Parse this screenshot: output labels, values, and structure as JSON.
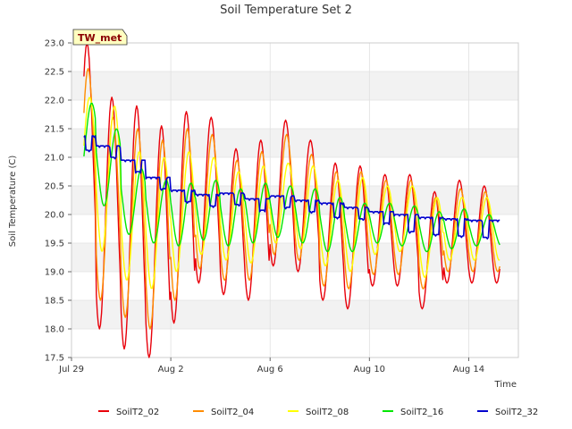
{
  "chart_data": {
    "type": "line",
    "title": "Soil Temperature Set 2",
    "xlabel": "Time",
    "ylabel": "Soil Temperature (C)",
    "station_label": "TW_met",
    "xlim": [
      "2023-07-29",
      "2023-08-16"
    ],
    "x_ticks": [
      {
        "date": "2023-07-29",
        "label": "Jul 29"
      },
      {
        "date": "2023-08-02",
        "label": "Aug 2"
      },
      {
        "date": "2023-08-06",
        "label": "Aug 6"
      },
      {
        "date": "2023-08-10",
        "label": "Aug 10"
      },
      {
        "date": "2023-08-14",
        "label": "Aug 14"
      }
    ],
    "ylim": [
      17.5,
      23.0
    ],
    "y_ticks": [
      "17.5",
      "18.0",
      "18.5",
      "19.0",
      "19.5",
      "20.0",
      "20.5",
      "21.0",
      "21.5",
      "22.0",
      "22.5",
      "23.0"
    ],
    "grid": true,
    "legend_position": "bottom",
    "x_start": "2023-07-29T12:00",
    "x_end": "2023-08-15T06:00",
    "series": [
      {
        "name": "SoilT2_02",
        "color": "#e8000b",
        "daily_max": [
          23.0,
          22.05,
          21.9,
          21.55,
          21.8,
          21.7,
          21.15,
          21.3,
          21.65,
          21.3,
          20.9,
          20.85,
          20.7,
          20.7,
          20.4,
          20.6,
          20.5
        ],
        "daily_min": [
          19.0,
          18.0,
          17.65,
          17.5,
          18.1,
          18.8,
          18.6,
          18.5,
          19.1,
          19.0,
          18.5,
          18.35,
          18.75,
          18.75,
          18.35,
          18.8,
          18.8
        ]
      },
      {
        "name": "SoilT2_04",
        "color": "#ff8c00",
        "daily_max": [
          22.55,
          21.7,
          21.5,
          21.3,
          21.5,
          21.4,
          20.95,
          21.1,
          21.4,
          21.05,
          20.75,
          20.75,
          20.6,
          20.6,
          20.3,
          20.45,
          20.4
        ],
        "daily_min": [
          19.45,
          18.5,
          18.2,
          18.0,
          18.5,
          19.05,
          18.85,
          18.85,
          19.3,
          19.2,
          18.75,
          18.7,
          18.95,
          18.95,
          18.7,
          19.0,
          19.0
        ]
      },
      {
        "name": "SoilT2_08",
        "color": "#ffff00",
        "daily_max": [
          22.05,
          21.9,
          21.1,
          21.0,
          21.1,
          21.0,
          20.75,
          20.85,
          20.9,
          20.85,
          20.6,
          20.65,
          20.5,
          20.5,
          20.3,
          20.3,
          20.3
        ],
        "daily_min": [
          20.1,
          19.35,
          18.85,
          18.7,
          19.0,
          19.3,
          19.2,
          19.15,
          19.5,
          19.4,
          19.1,
          19.0,
          19.3,
          19.35,
          18.9,
          19.2,
          19.2
        ]
      },
      {
        "name": "SoilT2_16",
        "color": "#00e600",
        "daily_max": [
          21.95,
          21.5,
          20.8,
          20.6,
          20.55,
          20.6,
          20.45,
          20.55,
          20.5,
          20.45,
          20.3,
          20.2,
          20.2,
          20.15,
          20.05,
          20.1,
          20.0
        ],
        "daily_min": [
          20.6,
          20.15,
          19.65,
          19.5,
          19.45,
          19.55,
          19.45,
          19.5,
          19.6,
          19.5,
          19.35,
          19.35,
          19.5,
          19.45,
          19.35,
          19.4,
          19.45
        ]
      },
      {
        "name": "SoilT2_32",
        "color": "#0000cd",
        "levels": [
          21.38,
          21.2,
          20.95,
          20.65,
          20.42,
          20.35,
          20.38,
          20.28,
          20.32,
          20.25,
          20.2,
          20.12,
          20.05,
          20.0,
          19.95,
          19.92,
          19.9
        ],
        "daily_dip": [
          0.25,
          0.2,
          0.2,
          0.2,
          0.2,
          0.2,
          0.2,
          0.2,
          0.2,
          0.2,
          0.25,
          0.2,
          0.2,
          0.3,
          0.3,
          0.3,
          0.3
        ]
      }
    ]
  }
}
